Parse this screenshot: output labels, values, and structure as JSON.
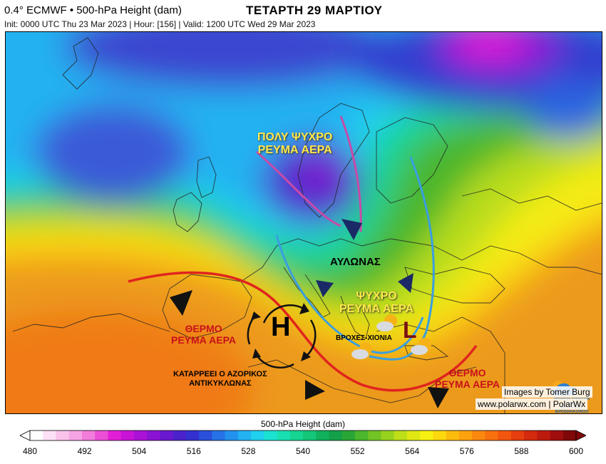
{
  "header": {
    "model_line": "0.4° ECMWF • 500-hPa Height (dam)",
    "run_line": "Init: 0000 UTC Thu 23 Mar 2023 | Hour: [156] | Valid: 1200 UTC Wed 29 Mar 2023",
    "day_title": "ΤΕΤΑΡΤΗ 29 ΜΑΡΤΙΟΥ"
  },
  "annotations": {
    "very_cold_air_1": "ΠΟΛΥ ΨΥΧΡΟ",
    "very_cold_air_2": "ΡΕΥΜΑ ΑΕΡΑ",
    "trough": "ΑΥΛΩΝΑΣ",
    "cold_air_1": "ΨΥΧΡΟ",
    "cold_air_2": "ΡΕΥΜΑ ΑΕΡΑ",
    "warm_air_west_1": "ΘΕΡΜΟ",
    "warm_air_west_2": "ΡΕΥΜΑ ΑΕΡΑ",
    "warm_air_east_1": "ΘΕΡΜΟ",
    "warm_air_east_2": "ΡΕΥΜΑ ΑΕΡΑ",
    "rain_snow": "ΒΡΟΧΕΣ-ΧΙΟΝΙΑ",
    "azores_1": "ΚΑΤΑΡΡΕΕΙ Ο ΑΖΟΡΙΚΟΣ",
    "azores_2": "ΑΝΤΙΚΥΚΛΩΝΑΣ",
    "high_symbol": "H",
    "low_symbol": "L"
  },
  "credits": {
    "images_by": "Images by Tomer Burg",
    "website": "www.polarwx.com | PolarWx",
    "logo_line_1": "Weather Forecast Cyprus",
    "logo_line_2": "BY TASOS IERODIAKONOU"
  },
  "colorbar": {
    "title": "500-hPa Height (dam)",
    "min": 480,
    "max": 600,
    "tick_labels": [
      "480",
      "492",
      "504",
      "516",
      "528",
      "540",
      "552",
      "564",
      "576",
      "588",
      "600"
    ],
    "colors": [
      "#ffffff",
      "#fde0f4",
      "#fac3ec",
      "#f7a4e4",
      "#f27ddb",
      "#ec4fd5",
      "#e21fd6",
      "#c914d8",
      "#aa12d6",
      "#8a13d4",
      "#6a18d0",
      "#4b22cc",
      "#3430d0",
      "#2a50dc",
      "#2672e6",
      "#2392ee",
      "#22b2f2",
      "#20d0ee",
      "#1ce2d2",
      "#18e0b2",
      "#16d492",
      "#14c678",
      "#10b05c",
      "#14a04a",
      "#2aa636",
      "#4cb62c",
      "#72c424",
      "#98d21e",
      "#bede18",
      "#e0e814",
      "#f8f010",
      "#fcd80e",
      "#fcbc0e",
      "#fca20e",
      "#fb880e",
      "#f8700e",
      "#f2560e",
      "#e63e0e",
      "#d42a0e",
      "#bd1a0e",
      "#a00e0e",
      "#800808"
    ]
  }
}
